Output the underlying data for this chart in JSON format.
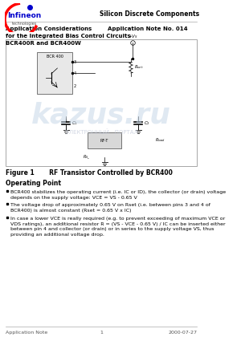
{
  "bg_color": "#ffffff",
  "header_line_color": "#cccccc",
  "footer_line_color": "#cccccc",
  "title_left": "Application Considerations\nfor the Integrated Bias Control Circuits\nBCR400R and BCR400W",
  "title_right": "Application Note No. 014",
  "company": "Silicon Discrete Components",
  "figure_caption": "Figure 1       RF Transistor Controlled by BCR400",
  "section_title": "Operating Point",
  "bullets": [
    "BCR400 stabilizes the operating current (i.e. IC or ID), the collector (or drain) voltage\ndepends on the supply voltage: VCE = VS - 0.65 V",
    "The voltage drop of approximately 0.65 V on Rset (i.e. between pins 3 and 4 of\nBCR400) is almost constant (Rset = 0.65 V x IC)",
    "In case a lower VCE is really required (e.g. to prevent exceeding of maximum VCE or\nVDS ratings), an additional resistor R = (VS - VCE - 0.65 V) / IC can be inserted either\nbetween pin 4 and collector (or drain) or in series to the supply voltage VS, thus\nproviding an additional voltage drop."
  ],
  "footer_left": "Application Note",
  "footer_center": "1",
  "footer_right": "2000-07-27",
  "diagram_box_color": "#f0f0f0",
  "diagram_border_color": "#999999",
  "watermark_text": "kazus.ru",
  "watermark_subtext": "ЭЛЕКТРОННЫЙ   ПОРТАЛ"
}
